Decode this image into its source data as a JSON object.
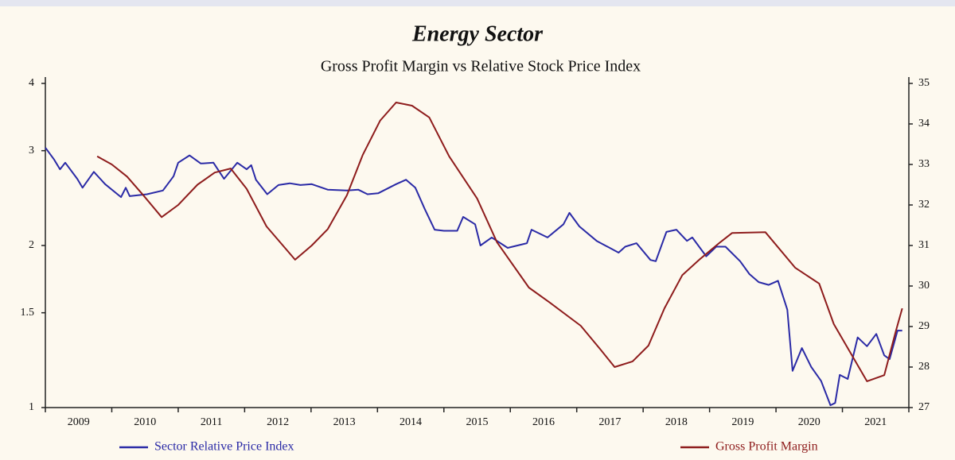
{
  "chart_data": {
    "type": "line",
    "title": "Energy Sector",
    "subtitle": "Gross Profit Margin vs Relative Stock Price Index",
    "xlim": [
      2009,
      2022
    ],
    "xticks": [
      {
        "value": 2009.5,
        "label": "2009"
      },
      {
        "value": 2010.5,
        "label": "2010"
      },
      {
        "value": 2011.5,
        "label": "2011"
      },
      {
        "value": 2012.5,
        "label": "2012"
      },
      {
        "value": 2013.5,
        "label": "2013"
      },
      {
        "value": 2014.5,
        "label": "2014"
      },
      {
        "value": 2015.5,
        "label": "2015"
      },
      {
        "value": 2016.5,
        "label": "2016"
      },
      {
        "value": 2017.5,
        "label": "2017"
      },
      {
        "value": 2018.5,
        "label": "2018"
      },
      {
        "value": 2019.5,
        "label": "2019"
      },
      {
        "value": 2020.5,
        "label": "2020"
      },
      {
        "value": 2021.5,
        "label": "2021"
      }
    ],
    "ylim": [
      1,
      4
    ],
    "yscale": "log",
    "yticks": [
      1,
      1.5,
      2,
      3,
      4
    ],
    "y2lim": [
      27,
      35
    ],
    "y2ticks": [
      27,
      28,
      29,
      30,
      31,
      32,
      33,
      34,
      35
    ],
    "legend": "bottom",
    "series": [
      {
        "name": "Sector Relative Price Index",
        "color": "#2a2aa6",
        "x": [
          2009.0,
          2009.13,
          2009.22,
          2009.3,
          2009.48,
          2009.56,
          2009.73,
          2009.9,
          2010.14,
          2010.21,
          2010.27,
          2010.53,
          2010.77,
          2010.93,
          2011.0,
          2011.17,
          2011.34,
          2011.53,
          2011.69,
          2011.89,
          2012.03,
          2012.1,
          2012.17,
          2012.34,
          2012.51,
          2012.68,
          2012.84,
          2013.01,
          2013.25,
          2013.54,
          2013.71,
          2013.85,
          2014.01,
          2014.28,
          2014.43,
          2014.57,
          2014.71,
          2014.86,
          2015.0,
          2015.2,
          2015.29,
          2015.47,
          2015.55,
          2015.72,
          2015.96,
          2016.25,
          2016.32,
          2016.56,
          2016.8,
          2016.89,
          2017.04,
          2017.3,
          2017.63,
          2017.73,
          2017.9,
          2018.11,
          2018.19,
          2018.35,
          2018.5,
          2018.66,
          2018.74,
          2018.95,
          2019.1,
          2019.24,
          2019.46,
          2019.6,
          2019.74,
          2019.89,
          2020.03,
          2020.17,
          2020.25,
          2020.39,
          2020.53,
          2020.68,
          2020.82,
          2020.89,
          2020.96,
          2021.08,
          2021.23,
          2021.37,
          2021.51,
          2021.63,
          2021.71,
          2021.83,
          2021.9
        ],
        "values": [
          3.04,
          2.89,
          2.77,
          2.85,
          2.66,
          2.56,
          2.74,
          2.6,
          2.46,
          2.56,
          2.47,
          2.49,
          2.53,
          2.69,
          2.85,
          2.94,
          2.84,
          2.85,
          2.66,
          2.85,
          2.77,
          2.82,
          2.65,
          2.49,
          2.59,
          2.61,
          2.59,
          2.6,
          2.54,
          2.53,
          2.54,
          2.49,
          2.5,
          2.6,
          2.65,
          2.56,
          2.34,
          2.14,
          2.13,
          2.13,
          2.26,
          2.19,
          2.0,
          2.07,
          1.98,
          2.02,
          2.14,
          2.07,
          2.19,
          2.3,
          2.17,
          2.04,
          1.94,
          1.99,
          2.02,
          1.88,
          1.87,
          2.12,
          2.14,
          2.04,
          2.07,
          1.91,
          1.99,
          1.99,
          1.87,
          1.77,
          1.71,
          1.69,
          1.72,
          1.52,
          1.17,
          1.29,
          1.19,
          1.12,
          1.01,
          1.02,
          1.15,
          1.13,
          1.35,
          1.3,
          1.37,
          1.25,
          1.23,
          1.39,
          1.39
        ]
      },
      {
        "name": "Gross Profit Margin",
        "color": "#8e1c1c",
        "axis": "y2",
        "x": [
          2009.78,
          2010.0,
          2010.23,
          2010.47,
          2010.75,
          2011.0,
          2011.29,
          2011.55,
          2011.79,
          2012.03,
          2012.33,
          2012.76,
          2013.01,
          2013.25,
          2013.54,
          2013.78,
          2014.04,
          2014.28,
          2014.52,
          2014.78,
          2015.08,
          2015.5,
          2015.8,
          2016.28,
          2016.58,
          2017.06,
          2017.36,
          2017.57,
          2017.84,
          2018.08,
          2018.32,
          2018.59,
          2018.86,
          2019.16,
          2019.34,
          2019.84,
          2020.29,
          2020.65,
          2020.87,
          2021.37,
          2021.63,
          2021.8,
          2021.9
        ],
        "values": [
          33.2,
          33.0,
          32.7,
          32.25,
          31.7,
          32.0,
          32.5,
          32.8,
          32.9,
          32.4,
          31.47,
          30.65,
          31.0,
          31.4,
          32.24,
          33.24,
          34.08,
          34.53,
          34.45,
          34.16,
          33.2,
          32.16,
          31.08,
          29.96,
          29.61,
          29.02,
          28.43,
          28.0,
          28.14,
          28.53,
          29.45,
          30.27,
          30.67,
          31.08,
          31.31,
          31.33,
          30.45,
          30.06,
          29.06,
          27.65,
          27.8,
          28.86,
          29.45
        ]
      }
    ]
  }
}
